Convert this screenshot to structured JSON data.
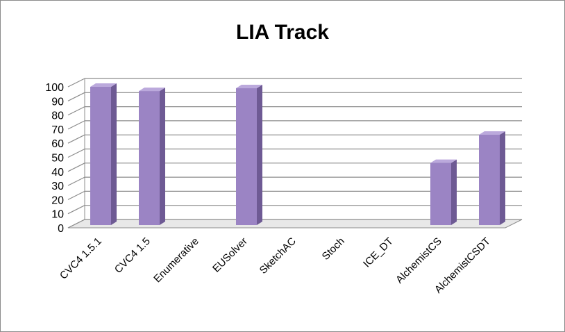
{
  "chart_data": {
    "type": "bar",
    "title": "LIA Track",
    "xlabel": "",
    "ylabel": "",
    "categories": [
      "CVC4 1.5.1",
      "CVC4 1.5",
      "Enumerative",
      "EUSolver",
      "SketchAC",
      "Stoch",
      "ICE_DT",
      "AlchemistCS",
      "AlchemistCSDT"
    ],
    "values": [
      100,
      97,
      0,
      99,
      0,
      0,
      0,
      46,
      66
    ],
    "ylim": [
      0,
      100
    ],
    "yticks": [
      "0",
      "10",
      "20",
      "30",
      "40",
      "50",
      "60",
      "70",
      "80",
      "90",
      "100"
    ],
    "grid": true,
    "legend": "none",
    "colors": {
      "bar_front": "#9b84c4",
      "bar_side": "#6e5a94",
      "bar_top": "#bba9dc",
      "grid": "#8c8c8c",
      "floor": "#e8e8e8"
    }
  }
}
